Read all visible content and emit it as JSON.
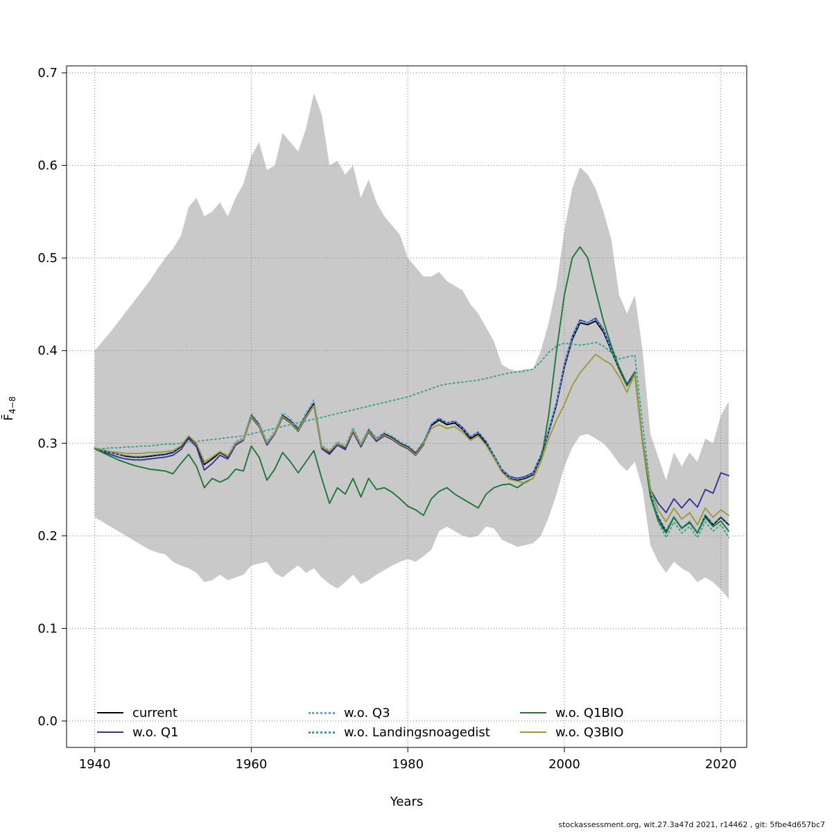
{
  "page": {
    "xlabel": "Years",
    "ylabel_main": "F̄",
    "ylabel_sub": "4−8",
    "footer": "stockassessment.org, wit.27.3a47d 2021, r14462 , git: 5fbe4d657bc7"
  },
  "chart_data": {
    "type": "line",
    "title": "",
    "xlabel": "Years",
    "ylabel": "Fbar(4-8)",
    "xlim": [
      1936.4,
      2023.3
    ],
    "ylim": [
      -0.0285,
      0.7075
    ],
    "x_ticks": [
      1940,
      1960,
      1980,
      2000,
      2020
    ],
    "y_ticks": [
      0.0,
      0.1,
      0.2,
      0.3,
      0.4,
      0.5,
      0.6,
      0.7
    ],
    "grid": true,
    "legend_position": "bottom-inside",
    "years": [
      1940,
      1941,
      1942,
      1943,
      1944,
      1945,
      1946,
      1947,
      1948,
      1949,
      1950,
      1951,
      1952,
      1953,
      1954,
      1955,
      1956,
      1957,
      1958,
      1959,
      1960,
      1961,
      1962,
      1963,
      1964,
      1965,
      1966,
      1967,
      1968,
      1969,
      1970,
      1971,
      1972,
      1973,
      1974,
      1975,
      1976,
      1977,
      1978,
      1979,
      1980,
      1981,
      1982,
      1983,
      1984,
      1985,
      1986,
      1987,
      1988,
      1989,
      1990,
      1991,
      1992,
      1993,
      1994,
      1995,
      1996,
      1997,
      1998,
      1999,
      2000,
      2001,
      2002,
      2003,
      2004,
      2005,
      2006,
      2007,
      2008,
      2009,
      2010,
      2011,
      2012,
      2013,
      2014,
      2015,
      2016,
      2017,
      2018,
      2019,
      2020,
      2021
    ],
    "band": {
      "name": "confidence-band",
      "color": "#c9c9c9",
      "upper": [
        0.4,
        0.41,
        0.42,
        0.431,
        0.442,
        0.453,
        0.464,
        0.475,
        0.488,
        0.5,
        0.51,
        0.524,
        0.555,
        0.565,
        0.545,
        0.55,
        0.56,
        0.545,
        0.565,
        0.58,
        0.61,
        0.625,
        0.595,
        0.6,
        0.635,
        0.625,
        0.615,
        0.64,
        0.678,
        0.655,
        0.6,
        0.605,
        0.59,
        0.6,
        0.565,
        0.585,
        0.56,
        0.545,
        0.535,
        0.525,
        0.5,
        0.49,
        0.48,
        0.48,
        0.485,
        0.475,
        0.47,
        0.465,
        0.45,
        0.44,
        0.425,
        0.41,
        0.385,
        0.38,
        0.378,
        0.38,
        0.38,
        0.4,
        0.43,
        0.47,
        0.53,
        0.575,
        0.598,
        0.59,
        0.575,
        0.55,
        0.52,
        0.46,
        0.44,
        0.46,
        0.4,
        0.31,
        0.285,
        0.26,
        0.29,
        0.275,
        0.29,
        0.28,
        0.305,
        0.3,
        0.33,
        0.345
      ],
      "lower": [
        0.22,
        0.215,
        0.21,
        0.205,
        0.2,
        0.195,
        0.19,
        0.185,
        0.182,
        0.18,
        0.172,
        0.168,
        0.165,
        0.16,
        0.15,
        0.152,
        0.158,
        0.152,
        0.155,
        0.158,
        0.168,
        0.17,
        0.172,
        0.16,
        0.155,
        0.162,
        0.168,
        0.16,
        0.165,
        0.155,
        0.148,
        0.143,
        0.15,
        0.158,
        0.148,
        0.152,
        0.158,
        0.163,
        0.168,
        0.172,
        0.175,
        0.172,
        0.178,
        0.185,
        0.205,
        0.21,
        0.205,
        0.2,
        0.198,
        0.2,
        0.21,
        0.208,
        0.196,
        0.192,
        0.188,
        0.19,
        0.192,
        0.2,
        0.22,
        0.245,
        0.275,
        0.295,
        0.308,
        0.31,
        0.305,
        0.3,
        0.29,
        0.278,
        0.27,
        0.28,
        0.25,
        0.19,
        0.172,
        0.16,
        0.172,
        0.165,
        0.16,
        0.15,
        0.155,
        0.15,
        0.142,
        0.132
      ]
    },
    "series": [
      {
        "name": "current",
        "color": "#000000",
        "dash": "solid",
        "values": [
          0.295,
          0.292,
          0.29,
          0.288,
          0.286,
          0.285,
          0.285,
          0.286,
          0.287,
          0.288,
          0.29,
          0.296,
          0.307,
          0.299,
          0.277,
          0.283,
          0.29,
          0.285,
          0.3,
          0.304,
          0.33,
          0.32,
          0.3,
          0.311,
          0.33,
          0.324,
          0.315,
          0.33,
          0.343,
          0.296,
          0.29,
          0.3,
          0.295,
          0.314,
          0.298,
          0.314,
          0.304,
          0.31,
          0.306,
          0.3,
          0.296,
          0.289,
          0.3,
          0.319,
          0.325,
          0.32,
          0.322,
          0.315,
          0.305,
          0.31,
          0.3,
          0.285,
          0.27,
          0.262,
          0.26,
          0.262,
          0.266,
          0.285,
          0.312,
          0.342,
          0.382,
          0.412,
          0.43,
          0.428,
          0.432,
          0.42,
          0.4,
          0.38,
          0.362,
          0.375,
          0.3,
          0.245,
          0.22,
          0.205,
          0.22,
          0.208,
          0.215,
          0.203,
          0.222,
          0.212,
          0.22,
          0.212
        ]
      },
      {
        "name": "w.o. Q1",
        "color": "#333399",
        "dash": "solid",
        "values": [
          0.295,
          0.291,
          0.288,
          0.285,
          0.283,
          0.282,
          0.282,
          0.283,
          0.284,
          0.285,
          0.287,
          0.293,
          0.305,
          0.296,
          0.271,
          0.278,
          0.287,
          0.283,
          0.298,
          0.303,
          0.328,
          0.318,
          0.298,
          0.31,
          0.328,
          0.322,
          0.313,
          0.328,
          0.341,
          0.294,
          0.288,
          0.298,
          0.293,
          0.312,
          0.296,
          0.312,
          0.302,
          0.308,
          0.304,
          0.298,
          0.294,
          0.287,
          0.298,
          0.32,
          0.327,
          0.322,
          0.324,
          0.317,
          0.307,
          0.312,
          0.302,
          0.287,
          0.272,
          0.264,
          0.262,
          0.264,
          0.268,
          0.287,
          0.314,
          0.344,
          0.385,
          0.415,
          0.433,
          0.43,
          0.435,
          0.423,
          0.402,
          0.382,
          0.364,
          0.377,
          0.302,
          0.25,
          0.235,
          0.225,
          0.24,
          0.23,
          0.24,
          0.231,
          0.25,
          0.246,
          0.268,
          0.265
        ]
      },
      {
        "name": "w.o. Q3",
        "color": "#56a9e0",
        "dash": "dotted",
        "values": [
          0.295,
          0.292,
          0.29,
          0.288,
          0.287,
          0.286,
          0.286,
          0.287,
          0.288,
          0.289,
          0.291,
          0.297,
          0.308,
          0.3,
          0.279,
          0.285,
          0.291,
          0.287,
          0.302,
          0.306,
          0.332,
          0.322,
          0.302,
          0.313,
          0.333,
          0.327,
          0.317,
          0.333,
          0.347,
          0.298,
          0.292,
          0.302,
          0.297,
          0.317,
          0.3,
          0.316,
          0.306,
          0.312,
          0.308,
          0.302,
          0.298,
          0.291,
          0.302,
          0.321,
          0.327,
          0.322,
          0.324,
          0.316,
          0.307,
          0.312,
          0.302,
          0.287,
          0.272,
          0.263,
          0.261,
          0.263,
          0.267,
          0.287,
          0.313,
          0.344,
          0.384,
          0.414,
          0.432,
          0.43,
          0.434,
          0.422,
          0.401,
          0.381,
          0.363,
          0.376,
          0.301,
          0.246,
          0.221,
          0.206,
          0.221,
          0.209,
          0.216,
          0.204,
          0.223,
          0.213,
          0.221,
          0.213
        ]
      },
      {
        "name": "w.o. Landingsnoagedist",
        "color": "#35a08f",
        "dash": "dotted",
        "values": [
          0.294,
          0.294,
          0.295,
          0.295,
          0.296,
          0.296,
          0.297,
          0.297,
          0.298,
          0.299,
          0.299,
          0.3,
          0.301,
          0.302,
          0.303,
          0.304,
          0.305,
          0.306,
          0.307,
          0.308,
          0.31,
          0.312,
          0.314,
          0.316,
          0.318,
          0.32,
          0.322,
          0.324,
          0.326,
          0.328,
          0.33,
          0.332,
          0.334,
          0.336,
          0.338,
          0.34,
          0.342,
          0.344,
          0.346,
          0.348,
          0.35,
          0.353,
          0.356,
          0.359,
          0.362,
          0.364,
          0.365,
          0.366,
          0.367,
          0.368,
          0.37,
          0.372,
          0.374,
          0.376,
          0.377,
          0.378,
          0.38,
          0.388,
          0.398,
          0.405,
          0.408,
          0.407,
          0.406,
          0.407,
          0.409,
          0.405,
          0.398,
          0.391,
          0.393,
          0.395,
          0.32,
          0.252,
          0.215,
          0.198,
          0.215,
          0.203,
          0.21,
          0.198,
          0.215,
          0.205,
          0.212,
          0.198
        ]
      },
      {
        "name": "w.o. Q1BIO",
        "color": "#1b7837",
        "dash": "solid",
        "values": [
          0.294,
          0.29,
          0.286,
          0.282,
          0.279,
          0.276,
          0.274,
          0.272,
          0.271,
          0.27,
          0.267,
          0.278,
          0.288,
          0.275,
          0.252,
          0.262,
          0.258,
          0.262,
          0.272,
          0.27,
          0.297,
          0.285,
          0.26,
          0.272,
          0.29,
          0.28,
          0.268,
          0.28,
          0.292,
          0.262,
          0.235,
          0.252,
          0.245,
          0.262,
          0.242,
          0.262,
          0.25,
          0.252,
          0.247,
          0.24,
          0.232,
          0.228,
          0.222,
          0.24,
          0.248,
          0.252,
          0.245,
          0.24,
          0.235,
          0.23,
          0.245,
          0.252,
          0.255,
          0.256,
          0.252,
          0.258,
          0.262,
          0.28,
          0.33,
          0.4,
          0.46,
          0.5,
          0.512,
          0.5,
          0.465,
          0.432,
          0.405,
          0.382,
          0.362,
          0.376,
          0.3,
          0.242,
          0.216,
          0.203,
          0.22,
          0.208,
          0.214,
          0.203,
          0.22,
          0.21,
          0.216,
          0.205
        ]
      },
      {
        "name": "w.o. Q3BIO",
        "color": "#9c9a38",
        "dash": "solid",
        "values": [
          0.295,
          0.293,
          0.291,
          0.29,
          0.289,
          0.289,
          0.289,
          0.29,
          0.29,
          0.291,
          0.292,
          0.297,
          0.308,
          0.3,
          0.28,
          0.285,
          0.291,
          0.286,
          0.3,
          0.304,
          0.329,
          0.319,
          0.3,
          0.311,
          0.329,
          0.323,
          0.314,
          0.329,
          0.341,
          0.296,
          0.291,
          0.3,
          0.296,
          0.314,
          0.298,
          0.313,
          0.304,
          0.309,
          0.305,
          0.299,
          0.295,
          0.288,
          0.299,
          0.316,
          0.32,
          0.316,
          0.318,
          0.312,
          0.303,
          0.308,
          0.298,
          0.284,
          0.269,
          0.261,
          0.259,
          0.257,
          0.262,
          0.28,
          0.305,
          0.325,
          0.342,
          0.362,
          0.376,
          0.386,
          0.396,
          0.39,
          0.385,
          0.372,
          0.355,
          0.375,
          0.3,
          0.25,
          0.228,
          0.215,
          0.23,
          0.218,
          0.225,
          0.212,
          0.23,
          0.22,
          0.228,
          0.222
        ]
      }
    ]
  }
}
